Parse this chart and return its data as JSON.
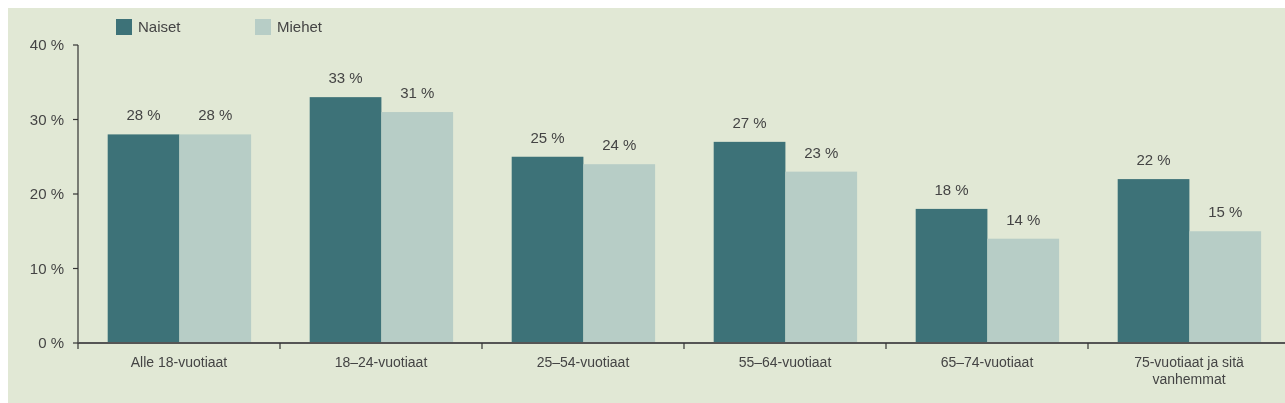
{
  "chart_data": {
    "type": "bar",
    "categories": [
      "Alle 18-vuotiaat",
      "18–24-vuotiaat",
      "25–54-vuotiaat",
      "55–64-vuotiaat",
      "65–74-vuotiaat",
      "75-vuotiaat ja sitä vanhemmat"
    ],
    "series": [
      {
        "name": "Naiset",
        "color": "#3d7278",
        "values": [
          28,
          33,
          25,
          27,
          18,
          22
        ]
      },
      {
        "name": "Miehet",
        "color": "#b7cdc6",
        "values": [
          28,
          31,
          24,
          23,
          14,
          15
        ]
      }
    ],
    "ylim": [
      0,
      40
    ],
    "yticks": [
      {
        "value": 0,
        "label": "0 %"
      },
      {
        "value": 10,
        "label": "10 %"
      },
      {
        "value": 20,
        "label": "20 %"
      },
      {
        "value": 30,
        "label": "30 %"
      },
      {
        "value": 40,
        "label": "40 %"
      }
    ],
    "value_labels": [
      [
        "28 %",
        "33 %",
        "25 %",
        "27 %",
        "18 %",
        "22 %"
      ],
      [
        "28 %",
        "31 %",
        "24 %",
        "23 %",
        "14 %",
        "15 %"
      ]
    ],
    "legend": "top left",
    "grid": false
  }
}
